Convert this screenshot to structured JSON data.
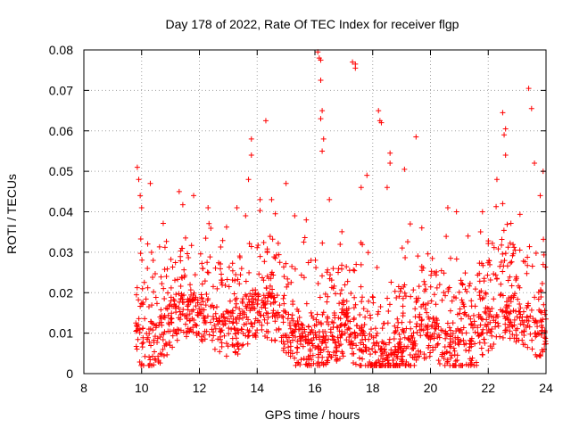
{
  "chart_data": {
    "type": "scatter",
    "title": "Day 178 of 2022, Rate Of TEC Index for receiver flgp",
    "xlabel": "GPS time / hours",
    "ylabel": "ROTI / TECUs",
    "xlim": [
      8,
      24
    ],
    "ylim": [
      0,
      0.08
    ],
    "grid": true,
    "marker": "plus",
    "colors": {
      "series": "#ff0000",
      "axes": "#000000",
      "grid": "#a0a0a0",
      "background": "#ffffff"
    },
    "x_ticks": [
      {
        "value": 8,
        "label": "8"
      },
      {
        "value": 10,
        "label": "10"
      },
      {
        "value": 12,
        "label": "12"
      },
      {
        "value": 14,
        "label": "14"
      },
      {
        "value": 16,
        "label": "16"
      },
      {
        "value": 18,
        "label": "18"
      },
      {
        "value": 20,
        "label": "20"
      },
      {
        "value": 22,
        "label": "22"
      },
      {
        "value": 24,
        "label": "24"
      }
    ],
    "y_ticks": [
      {
        "value": 0,
        "label": "0"
      },
      {
        "value": 0.01,
        "label": "0.01"
      },
      {
        "value": 0.02,
        "label": "0.02"
      },
      {
        "value": 0.03,
        "label": "0.03"
      },
      {
        "value": 0.04,
        "label": "0.04"
      },
      {
        "value": 0.05,
        "label": "0.05"
      },
      {
        "value": 0.06,
        "label": "0.06"
      },
      {
        "value": 0.07,
        "label": "0.07"
      },
      {
        "value": 0.08,
        "label": "0.08"
      }
    ],
    "series": [
      {
        "name": "ROTI",
        "summary": {
          "x_start": 9.8,
          "x_end": 24.0,
          "typical_min": 0.004,
          "typical_max": 0.03
        },
        "points": [
          [
            9.85,
            0.051
          ],
          [
            9.9,
            0.048
          ],
          [
            9.95,
            0.044
          ],
          [
            10.0,
            0.041
          ],
          [
            10.3,
            0.047
          ],
          [
            10.4,
            0.028
          ],
          [
            10.2,
            0.026
          ],
          [
            11.3,
            0.045
          ],
          [
            11.8,
            0.044
          ],
          [
            12.3,
            0.041
          ],
          [
            13.3,
            0.041
          ],
          [
            13.6,
            0.039
          ],
          [
            13.8,
            0.058
          ],
          [
            13.8,
            0.054
          ],
          [
            13.7,
            0.048
          ],
          [
            14.3,
            0.0625
          ],
          [
            14.1,
            0.043
          ],
          [
            14.5,
            0.043
          ],
          [
            15.0,
            0.047
          ],
          [
            15.3,
            0.039
          ],
          [
            15.7,
            0.038
          ],
          [
            16.1,
            0.0795
          ],
          [
            16.15,
            0.078
          ],
          [
            16.2,
            0.0775
          ],
          [
            16.2,
            0.0725
          ],
          [
            16.25,
            0.065
          ],
          [
            16.2,
            0.063
          ],
          [
            16.3,
            0.058
          ],
          [
            16.25,
            0.055
          ],
          [
            16.5,
            0.043
          ],
          [
            17.3,
            0.077
          ],
          [
            17.4,
            0.0765
          ],
          [
            17.4,
            0.0755
          ],
          [
            17.6,
            0.046
          ],
          [
            17.8,
            0.049
          ],
          [
            18.2,
            0.065
          ],
          [
            18.25,
            0.0625
          ],
          [
            18.3,
            0.062
          ],
          [
            18.6,
            0.0545
          ],
          [
            18.6,
            0.052
          ],
          [
            18.5,
            0.046
          ],
          [
            19.1,
            0.0505
          ],
          [
            19.5,
            0.0585
          ],
          [
            19.3,
            0.037
          ],
          [
            19.7,
            0.036
          ],
          [
            20.6,
            0.041
          ],
          [
            20.9,
            0.04
          ],
          [
            21.3,
            0.034
          ],
          [
            21.8,
            0.04
          ],
          [
            22.3,
            0.048
          ],
          [
            22.5,
            0.0645
          ],
          [
            22.6,
            0.0605
          ],
          [
            22.55,
            0.059
          ],
          [
            22.6,
            0.054
          ],
          [
            22.5,
            0.042
          ],
          [
            23.4,
            0.0705
          ],
          [
            23.5,
            0.0655
          ],
          [
            23.6,
            0.052
          ],
          [
            23.8,
            0.044
          ],
          [
            23.9,
            0.05
          ],
          [
            10.6,
            0.012
          ],
          [
            11.9,
            0.01
          ],
          [
            13.1,
            0.011
          ],
          [
            15.4,
            0.013
          ],
          [
            17.1,
            0.016
          ],
          [
            19.9,
            0.011
          ],
          [
            21.1,
            0.01
          ],
          [
            22.9,
            0.012
          ],
          [
            20.8,
            0.002
          ],
          [
            19.0,
            0.003
          ]
        ]
      }
    ]
  }
}
